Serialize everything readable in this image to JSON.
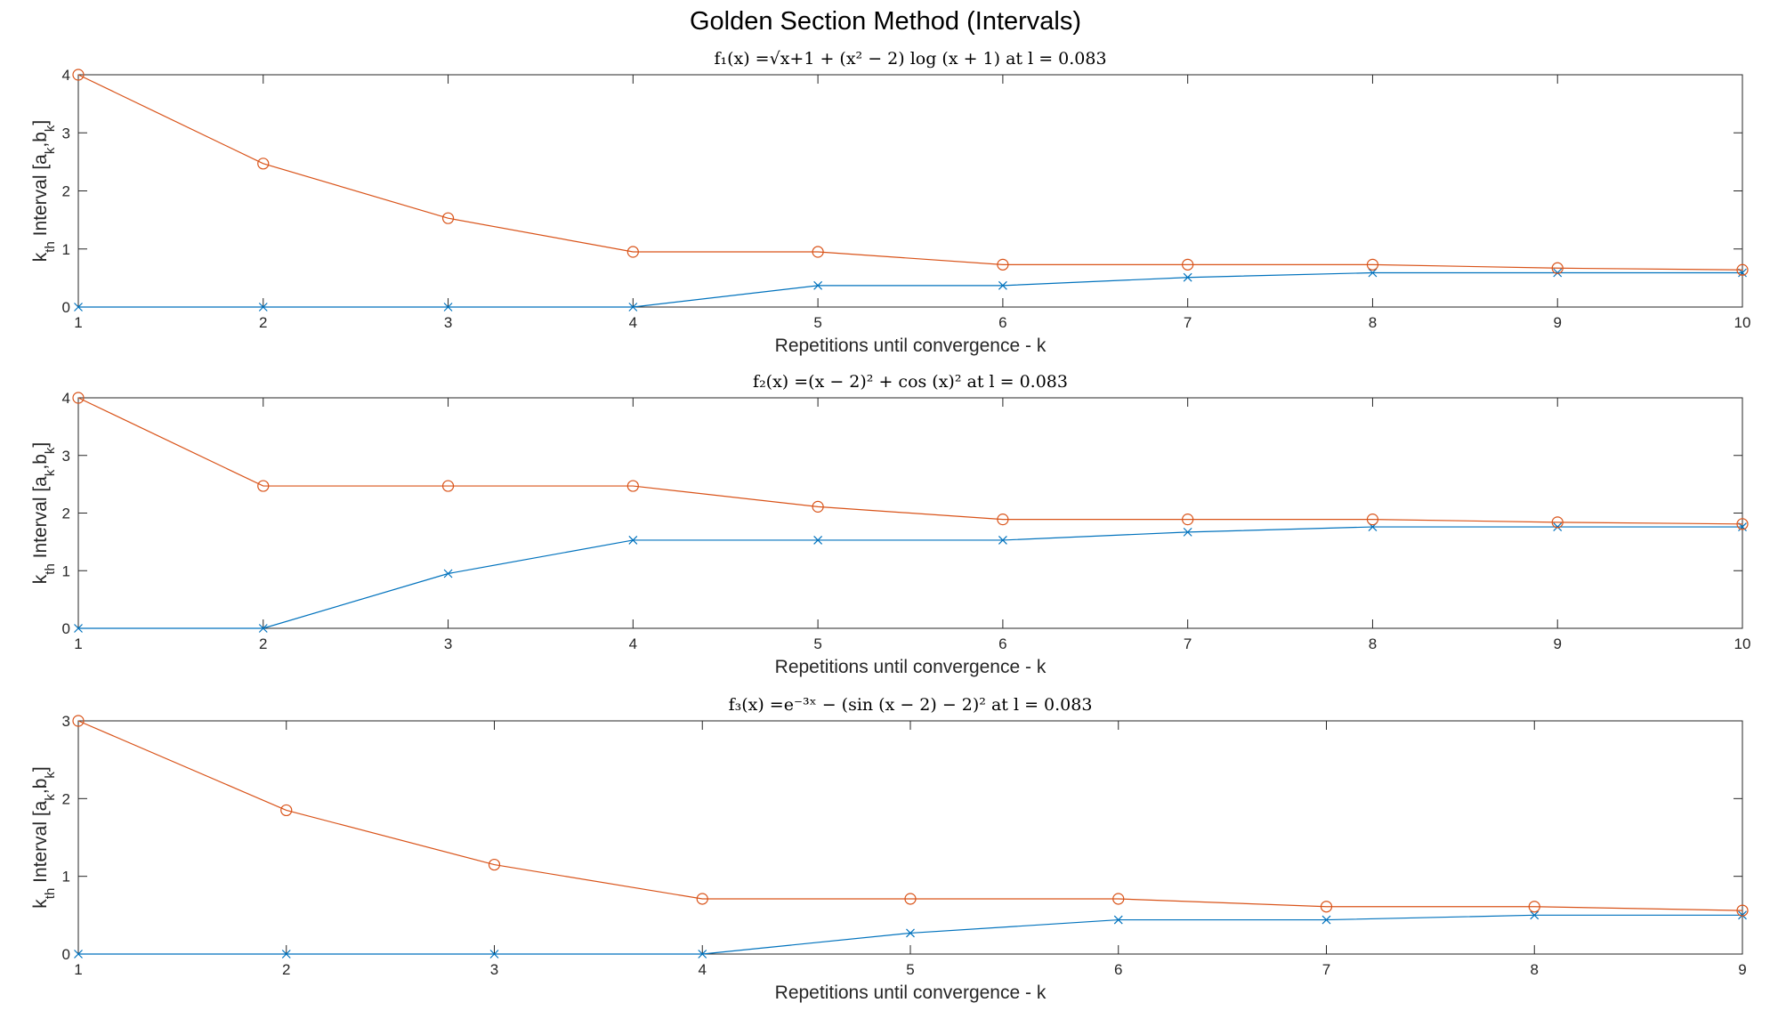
{
  "figure_title": "Golden Section Method (Intervals)",
  "colors": {
    "a_series": "#0072BD",
    "b_series": "#D95319",
    "axis": "#262626"
  },
  "chart_data": [
    {
      "type": "line",
      "title": "f₁(x) =√x+1 + (x² − 2) log (x + 1) at l = 0.083",
      "xlabel": "Repetitions until convergence - k",
      "ylabel": "k_th Interval [a_k,b_k]",
      "xlim": [
        1,
        10
      ],
      "ylim": [
        0,
        4
      ],
      "xticks": [
        1,
        2,
        3,
        4,
        5,
        6,
        7,
        8,
        9,
        10
      ],
      "yticks": [
        0,
        1,
        2,
        3,
        4
      ],
      "grid": false,
      "x": [
        1,
        2,
        3,
        4,
        5,
        6,
        7,
        8,
        9,
        10
      ],
      "series": [
        {
          "marker": "x",
          "color": "#0072BD",
          "values": [
            0,
            0,
            0,
            0,
            0.37,
            0.37,
            0.51,
            0.59,
            0.59,
            0.59
          ]
        },
        {
          "marker": "o",
          "color": "#D95319",
          "values": [
            4,
            2.47,
            1.53,
            0.95,
            0.95,
            0.73,
            0.73,
            0.73,
            0.67,
            0.64
          ]
        }
      ]
    },
    {
      "type": "line",
      "title": "f₂(x) =(x − 2)² + cos (x)² at l = 0.083",
      "xlabel": "Repetitions until convergence - k",
      "ylabel": "k_th Interval [a_k,b_k]",
      "xlim": [
        1,
        10
      ],
      "ylim": [
        0,
        4
      ],
      "xticks": [
        1,
        2,
        3,
        4,
        5,
        6,
        7,
        8,
        9,
        10
      ],
      "yticks": [
        0,
        1,
        2,
        3,
        4
      ],
      "grid": false,
      "x": [
        1,
        2,
        3,
        4,
        5,
        6,
        7,
        8,
        9,
        10
      ],
      "series": [
        {
          "marker": "x",
          "color": "#0072BD",
          "values": [
            0,
            0,
            0.95,
            1.53,
            1.53,
            1.53,
            1.67,
            1.76,
            1.76,
            1.76
          ]
        },
        {
          "marker": "o",
          "color": "#D95319",
          "values": [
            4,
            2.47,
            2.47,
            2.47,
            2.11,
            1.89,
            1.89,
            1.89,
            1.84,
            1.81
          ]
        }
      ]
    },
    {
      "type": "line",
      "title": "f₃(x) =e⁻³ˣ − (sin (x − 2) − 2)² at l = 0.083",
      "xlabel": "Repetitions until convergence - k",
      "ylabel": "k_th Interval [a_k,b_k]",
      "xlim": [
        1,
        9
      ],
      "ylim": [
        0,
        3
      ],
      "xticks": [
        1,
        2,
        3,
        4,
        5,
        6,
        7,
        8,
        9
      ],
      "yticks": [
        0,
        1,
        2,
        3
      ],
      "grid": false,
      "x": [
        1,
        2,
        3,
        4,
        5,
        6,
        7,
        8,
        9
      ],
      "series": [
        {
          "marker": "x",
          "color": "#0072BD",
          "values": [
            0,
            0,
            0,
            0,
            0.27,
            0.44,
            0.44,
            0.5,
            0.5
          ]
        },
        {
          "marker": "o",
          "color": "#D95319",
          "values": [
            3,
            1.85,
            1.15,
            0.71,
            0.71,
            0.71,
            0.61,
            0.61,
            0.56
          ]
        }
      ]
    }
  ]
}
